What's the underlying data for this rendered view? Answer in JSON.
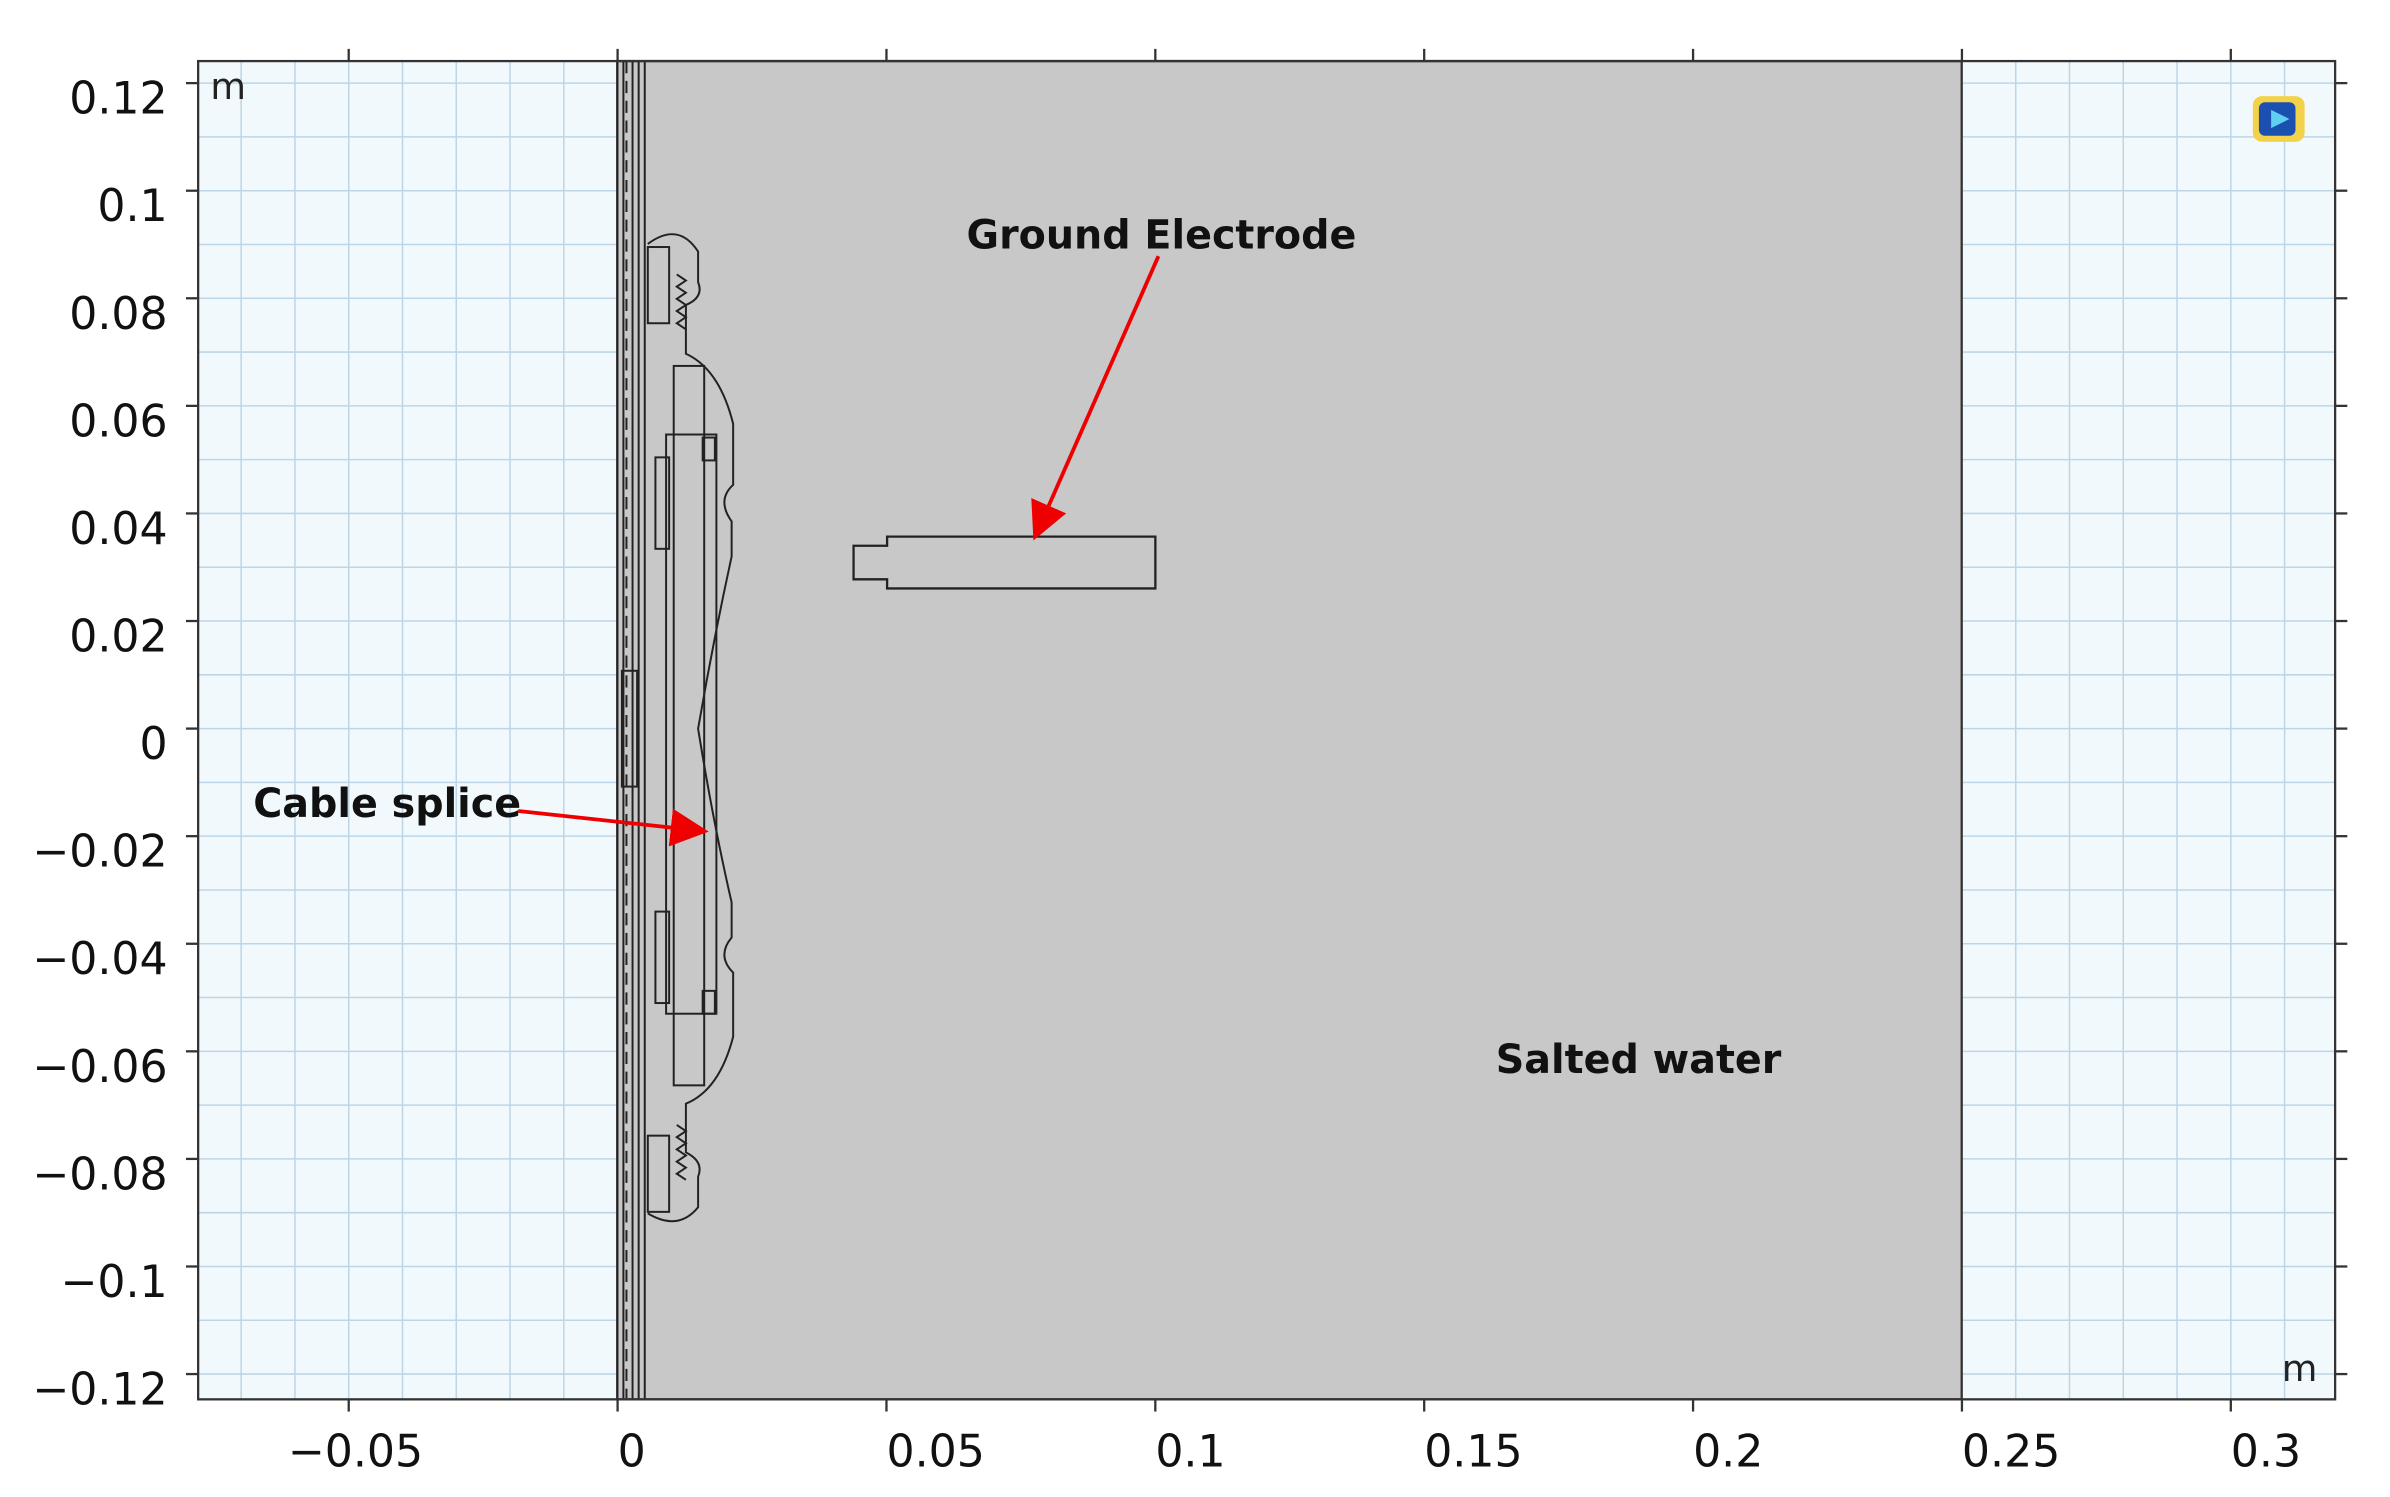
{
  "chart_data": {
    "type": "geometry",
    "xlim": [
      -0.078,
      0.3194
    ],
    "ylim": [
      -0.1247,
      0.1241
    ],
    "xticks": [
      {
        "value": -0.05,
        "label": "−0.05"
      },
      0,
      0.05,
      0.1,
      0.15,
      0.2,
      0.25,
      0.3
    ],
    "yticks": [
      {
        "value": -0.12,
        "label": "−0.12"
      },
      {
        "value": -0.1,
        "label": "−0.1"
      },
      {
        "value": -0.08,
        "label": "−0.08"
      },
      {
        "value": -0.06,
        "label": "−0.06"
      },
      {
        "value": -0.04,
        "label": "−0.04"
      },
      {
        "value": -0.02,
        "label": "−0.02"
      },
      0,
      0.02,
      0.04,
      0.06,
      0.08,
      0.1,
      0.12
    ],
    "grid": true,
    "grid_step": 0.01,
    "x_unit": "m",
    "y_unit": "m",
    "annotations": [
      "Ground Electrode",
      "Cable splice",
      "Salted water"
    ]
  }
}
